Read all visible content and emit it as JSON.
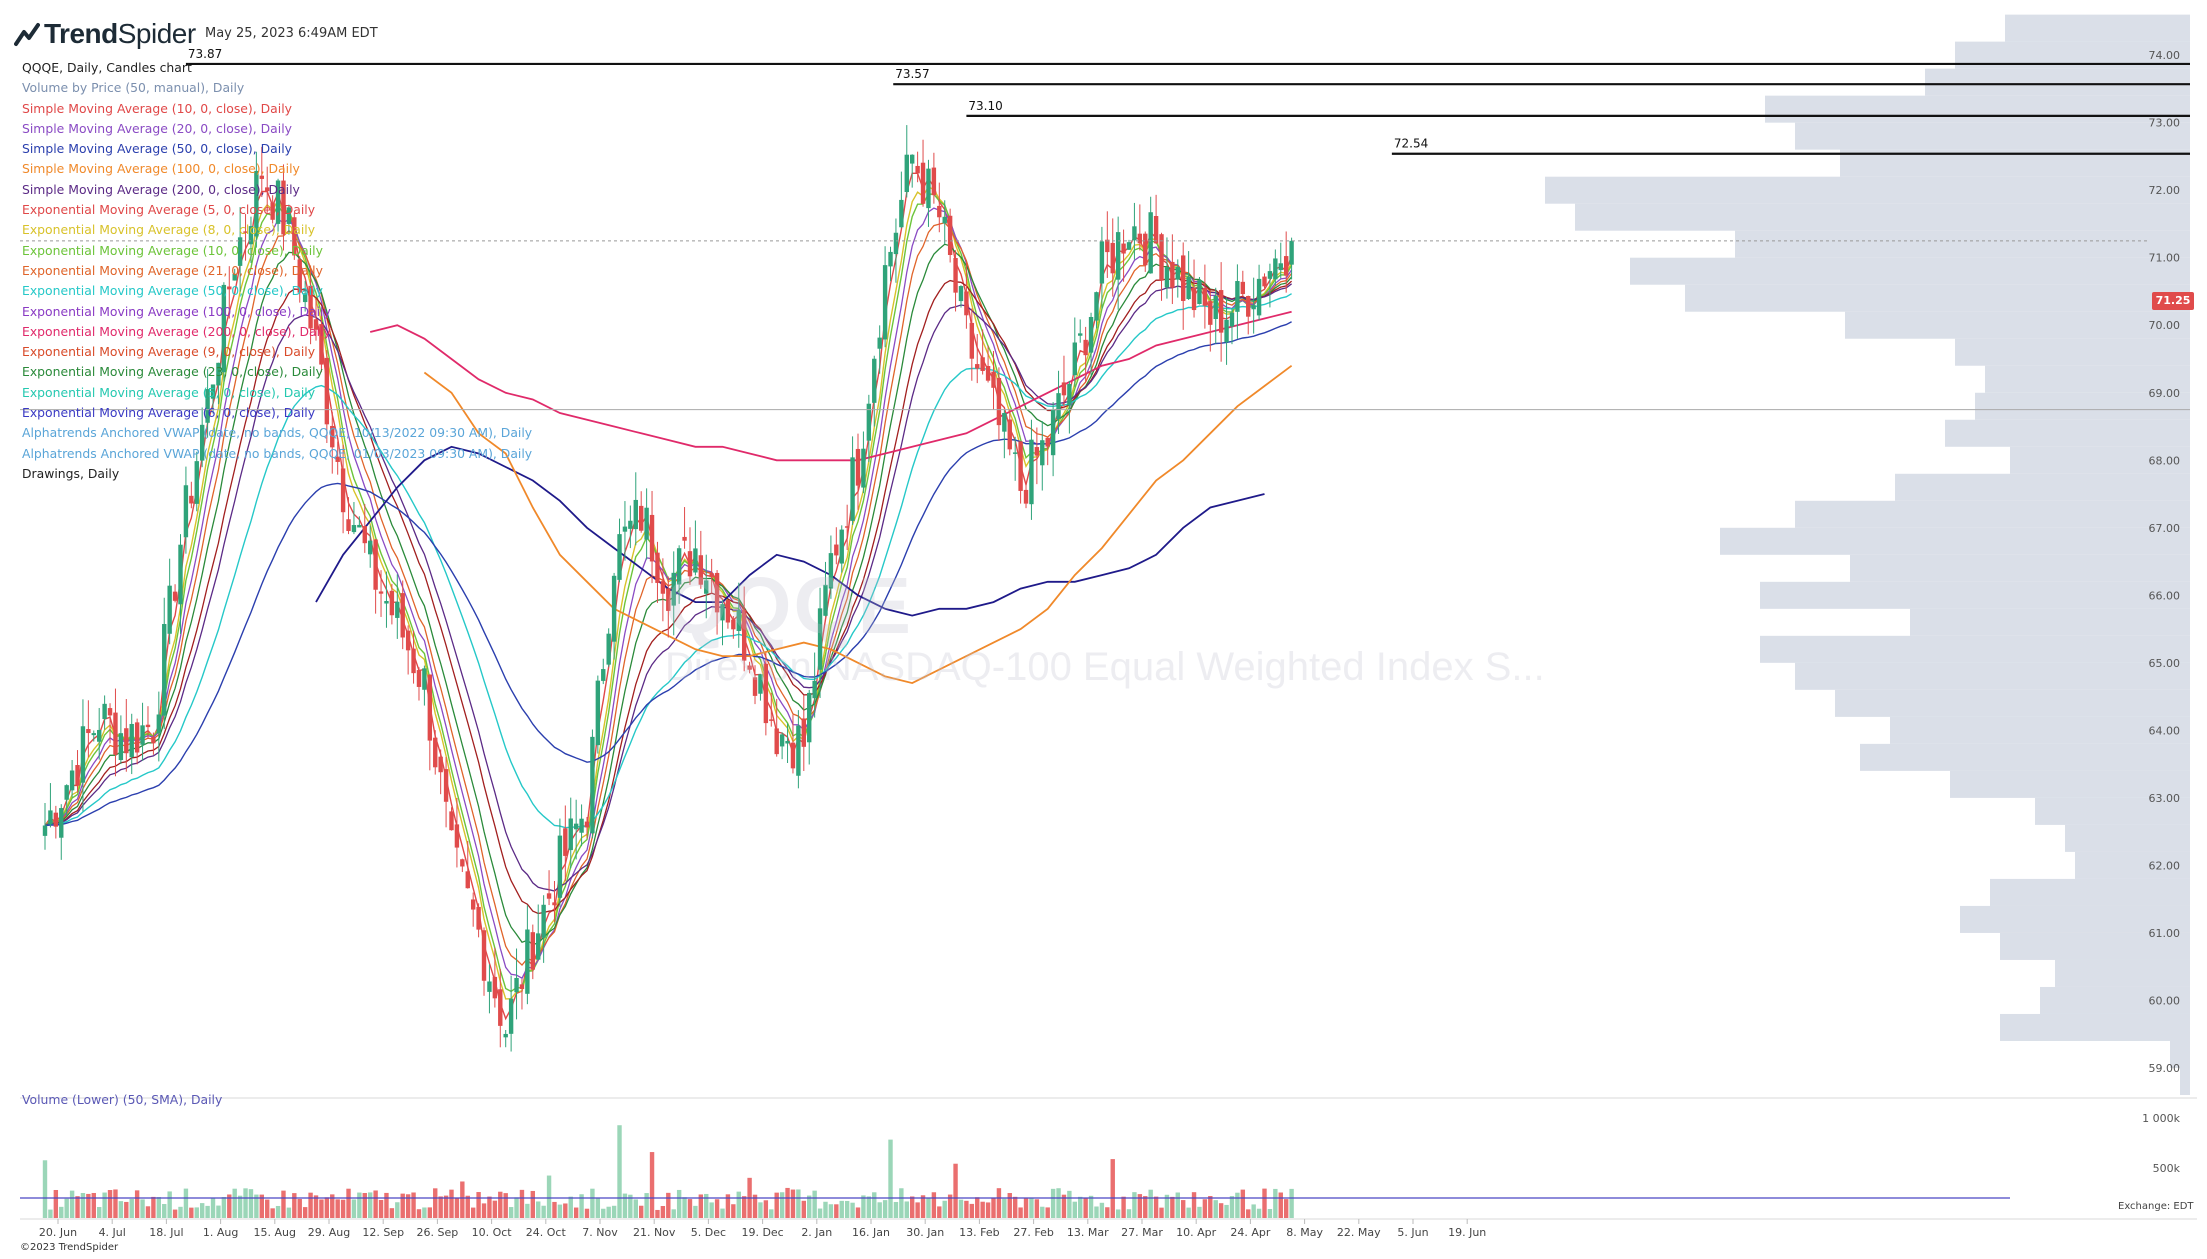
{
  "app": {
    "brand_bold": "Trend",
    "brand_light": "Spider",
    "datestamp": "May 25, 2023 6:49AM EDT",
    "copyright": "©2023 TrendSpider",
    "timezone_label": "Exchange: EDT",
    "watermark_symbol": "QQQE",
    "watermark_name": "Direxion NASDAQ-100 Equal Weighted Index S..."
  },
  "legend": [
    {
      "text": "QQQE, Daily, Candles chart",
      "color": "#222222"
    },
    {
      "text": "Volume by Price (50, manual), Daily",
      "color": "#7b8fae"
    },
    {
      "text": "Simple Moving Average (10, 0, close), Daily",
      "color": "#e04848"
    },
    {
      "text": "Simple Moving Average (20, 0, close), Daily",
      "color": "#8a4bc4"
    },
    {
      "text": "Simple Moving Average (50, 0, close), Daily",
      "color": "#2b3fae"
    },
    {
      "text": "Simple Moving Average (100, 0, close), Daily",
      "color": "#f0892a"
    },
    {
      "text": "Simple Moving Average (200, 0, close), Daily",
      "color": "#5b2a86"
    },
    {
      "text": "Exponential Moving Average (5, 0, close), Daily",
      "color": "#e04848"
    },
    {
      "text": "Exponential Moving Average (8, 0, close), Daily",
      "color": "#d8c22a"
    },
    {
      "text": "Exponential Moving Average (10, 0, close), Daily",
      "color": "#6cc43a"
    },
    {
      "text": "Exponential Moving Average (21, 0, close), Daily",
      "color": "#e0642a"
    },
    {
      "text": "Exponential Moving Average (50, 0, close), Daily",
      "color": "#25c8c8"
    },
    {
      "text": "Exponential Moving Average (100, 0, close), Daily",
      "color": "#8a3ac4"
    },
    {
      "text": "Exponential Moving Average (200, 0, close), Daily",
      "color": "#e02a6a"
    },
    {
      "text": "Exponential Moving Average (9, 0, close), Daily",
      "color": "#d84a2a"
    },
    {
      "text": "Exponential Moving Average (23, 0, close), Daily",
      "color": "#2a8a3a"
    },
    {
      "text": "Exponential Moving Average (5, 0, close), Daily",
      "color": "#25c8b0"
    },
    {
      "text": "Exponential Moving Average (6, 0, close), Daily",
      "color": "#3a3ac4"
    },
    {
      "text": "Alphatrends Anchored VWAP (date, no bands, QQQE, 10/13/2022 09:30 AM), Daily",
      "color": "#5aa5d8"
    },
    {
      "text": "Alphatrends Anchored VWAP (date, no bands, QQQE, 01/03/2023 09:30 AM), Daily",
      "color": "#5aa5d8"
    },
    {
      "text": "Drawings, Daily",
      "color": "#222222"
    }
  ],
  "volume_label": "Volume (Lower) (50, SMA), Daily",
  "last_price": "71.25",
  "colors": {
    "up": "#2fa37a",
    "down": "#e04b4b",
    "vol_up": "#9bd6b8",
    "vol_down": "#ea6f6f",
    "vbp": "#d3d9e4",
    "grid": "#f0f0f0"
  },
  "chart_data": {
    "type": "candlestick",
    "symbol": "QQQE",
    "x_ticks": [
      "20. Jun",
      "4. Jul",
      "18. Jul",
      "1. Aug",
      "15. Aug",
      "29. Aug",
      "12. Sep",
      "26. Sep",
      "10. Oct",
      "24. Oct",
      "7. Nov",
      "21. Nov",
      "5. Dec",
      "19. Dec",
      "2. Jan",
      "16. Jan",
      "30. Jan",
      "13. Feb",
      "27. Feb",
      "13. Mar",
      "27. Mar",
      "10. Apr",
      "24. Apr",
      "8. May",
      "22. May",
      "5. Jun",
      "19. Jun"
    ],
    "y_ticks": [
      59,
      60,
      61,
      62,
      63,
      64,
      65,
      66,
      67,
      68,
      69,
      70,
      71,
      72,
      73,
      74
    ],
    "ylim": [
      58.6,
      74.55
    ],
    "volume_ticks": [
      "500k",
      "1 000k"
    ],
    "volume_ylim": [
      0,
      1000000
    ],
    "resistance_lines": [
      {
        "label": "73.87",
        "value": 73.87,
        "from_week": 5.2
      },
      {
        "label": "73.57",
        "value": 73.57,
        "from_week": 31.3
      },
      {
        "label": "73.10",
        "value": 73.1,
        "from_week": 34.0
      },
      {
        "label": "72.54",
        "value": 72.54,
        "from_week": 49.7
      }
    ],
    "weekly_closes": [
      62.6,
      63.4,
      64.2,
      63.9,
      64.1,
      66.8,
      68.9,
      71.0,
      72.3,
      71.4,
      69.7,
      67.6,
      66.4,
      65.6,
      64.7,
      62.1,
      61.0,
      59.6,
      60.9,
      62.0,
      62.9,
      66.6,
      67.2,
      66.2,
      66.7,
      66.0,
      65.2,
      64.0,
      63.8,
      66.5,
      68.0,
      70.8,
      72.5,
      71.6,
      69.8,
      68.7,
      67.6,
      68.3,
      69.4,
      70.8,
      71.5,
      71.2,
      70.6,
      70.1,
      70.3,
      70.8,
      71.25
    ],
    "sma200_weekly": [
      65.9,
      66.6,
      67.1,
      67.6,
      68.0,
      68.2,
      68.1,
      67.9,
      67.7,
      67.4,
      67.0,
      66.7,
      66.4,
      66.1,
      65.9,
      65.9,
      66.3,
      66.6,
      66.5,
      66.3,
      66.0,
      65.8,
      65.7,
      65.8,
      65.8,
      65.9,
      66.1,
      66.2,
      66.2,
      66.3,
      66.4,
      66.6,
      67.0,
      67.3,
      67.4,
      67.5
    ],
    "sma100_weekly_from_aug": [
      69.3,
      69.0,
      68.4,
      68.1,
      67.3,
      66.6,
      66.2,
      65.8,
      65.6,
      65.4,
      65.2,
      65.1,
      65.1,
      65.2,
      65.3,
      65.2,
      65.0,
      64.8,
      64.7,
      64.9,
      65.1,
      65.3,
      65.5,
      65.8,
      66.3,
      66.7,
      67.2,
      67.7,
      68.0,
      68.4,
      68.8,
      69.1,
      69.4
    ],
    "ema200_weekly": [
      69.9,
      70.0,
      69.8,
      69.5,
      69.2,
      69.0,
      68.9,
      68.7,
      68.6,
      68.5,
      68.4,
      68.3,
      68.2,
      68.2,
      68.1,
      68.0,
      68.0,
      68.0,
      68.0,
      68.1,
      68.2,
      68.3,
      68.4,
      68.6,
      68.8,
      69.0,
      69.2,
      69.4,
      69.5,
      69.7,
      69.8,
      69.9,
      70.0,
      70.1,
      70.2
    ],
    "vbp_rows": [
      {
        "price": 74.4,
        "w": 185
      },
      {
        "price": 74.0,
        "w": 235
      },
      {
        "price": 73.6,
        "w": 265
      },
      {
        "price": 73.2,
        "w": 425
      },
      {
        "price": 72.8,
        "w": 395
      },
      {
        "price": 72.4,
        "w": 350
      },
      {
        "price": 72.0,
        "w": 645
      },
      {
        "price": 71.6,
        "w": 615
      },
      {
        "price": 71.2,
        "w": 455
      },
      {
        "price": 70.8,
        "w": 560
      },
      {
        "price": 70.4,
        "w": 505
      },
      {
        "price": 70.0,
        "w": 345
      },
      {
        "price": 69.6,
        "w": 235
      },
      {
        "price": 69.2,
        "w": 205
      },
      {
        "price": 68.8,
        "w": 215
      },
      {
        "price": 68.4,
        "w": 245
      },
      {
        "price": 68.0,
        "w": 180
      },
      {
        "price": 67.6,
        "w": 295
      },
      {
        "price": 67.2,
        "w": 395
      },
      {
        "price": 66.8,
        "w": 470
      },
      {
        "price": 66.4,
        "w": 340
      },
      {
        "price": 66.0,
        "w": 430
      },
      {
        "price": 65.6,
        "w": 280
      },
      {
        "price": 65.2,
        "w": 430
      },
      {
        "price": 64.8,
        "w": 395
      },
      {
        "price": 64.4,
        "w": 355
      },
      {
        "price": 64.0,
        "w": 300
      },
      {
        "price": 63.6,
        "w": 330
      },
      {
        "price": 63.2,
        "w": 240
      },
      {
        "price": 62.8,
        "w": 155
      },
      {
        "price": 62.4,
        "w": 125
      },
      {
        "price": 62.0,
        "w": 115
      },
      {
        "price": 61.6,
        "w": 200
      },
      {
        "price": 61.2,
        "w": 230
      },
      {
        "price": 60.8,
        "w": 190
      },
      {
        "price": 60.4,
        "w": 135
      },
      {
        "price": 60.0,
        "w": 150
      },
      {
        "price": 59.6,
        "w": 190
      },
      {
        "price": 59.2,
        "w": 20
      },
      {
        "price": 58.8,
        "w": 10
      }
    ]
  }
}
